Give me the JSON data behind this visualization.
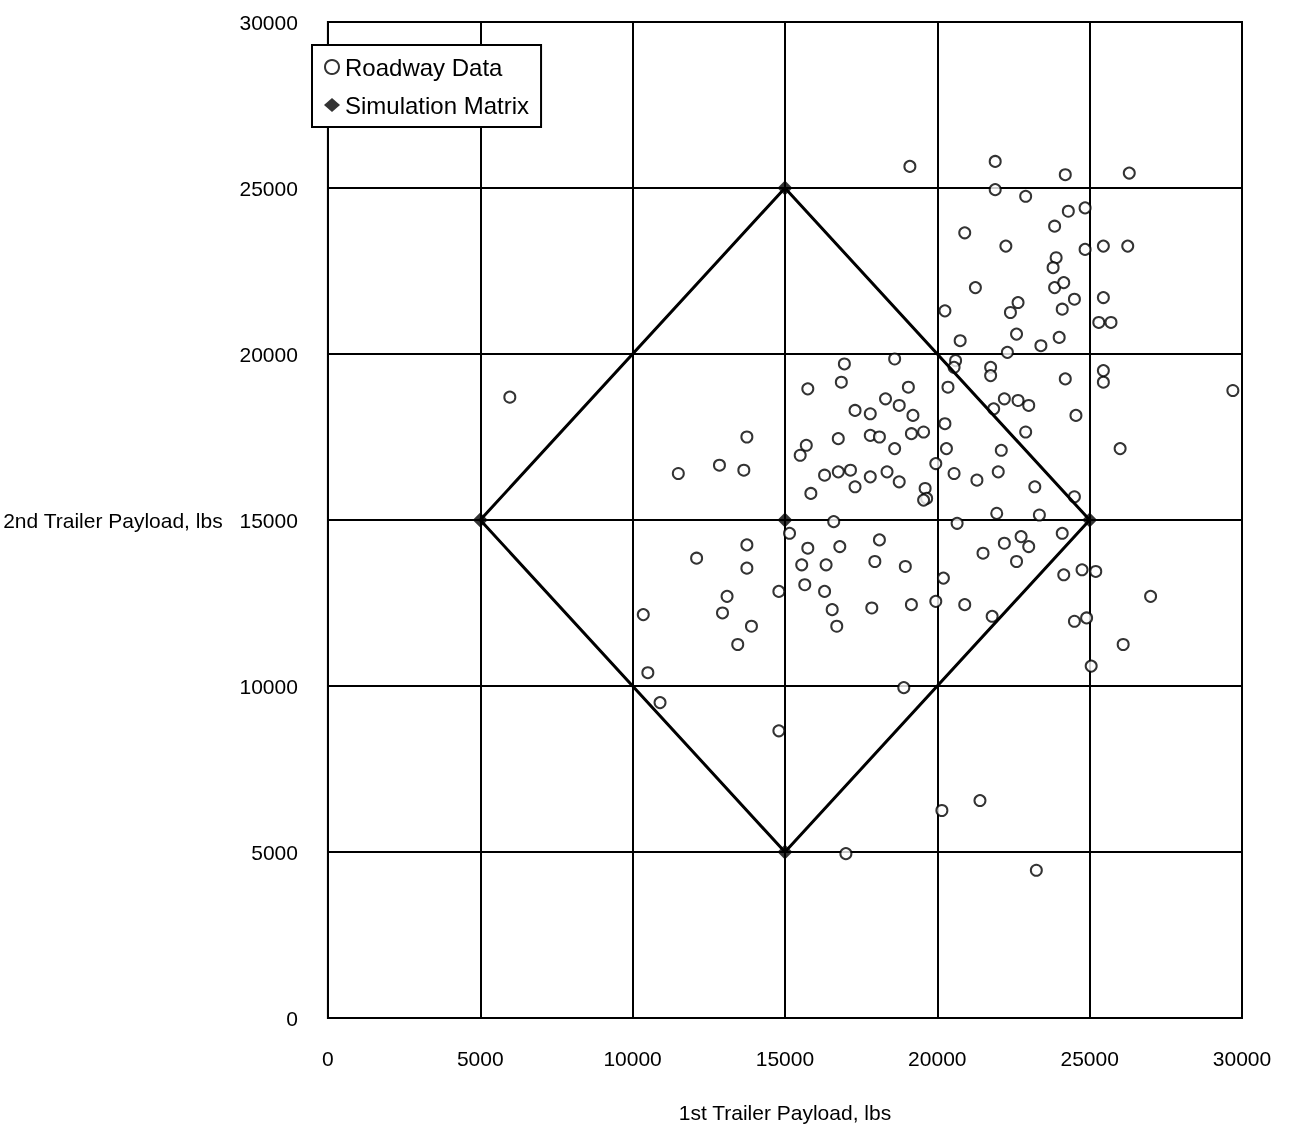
{
  "chart_data": {
    "type": "scatter",
    "xlabel": "1st Trailer Payload, lbs",
    "ylabel": "2nd Trailer Payload, lbs",
    "xlim": [
      0,
      30000
    ],
    "xticks": [
      0,
      5000,
      10000,
      15000,
      20000,
      25000,
      30000
    ],
    "ylim": [
      0,
      30000
    ],
    "yticks": [
      0,
      5000,
      10000,
      15000,
      20000,
      25000,
      30000
    ],
    "grid": true,
    "legend": "top left",
    "series": [
      {
        "name": "Roadway Data",
        "color": "#000000",
        "marker": "circle",
        "x": [
          5970,
          29700,
          19100,
          21900,
          24200,
          26300,
          21900,
          22900,
          24850,
          24300,
          23850,
          25450,
          26250,
          20900,
          22250,
          21250,
          20250,
          22400,
          22650,
          23900,
          23800,
          24850,
          23850,
          24150,
          24500,
          24100,
          25450,
          25300,
          25700,
          20750,
          22600,
          22300,
          23400,
          24000,
          20600,
          20550,
          21750,
          21750,
          24200,
          25450,
          25450,
          20350,
          21850,
          22200,
          22650,
          23000,
          24550,
          20250,
          22900,
          26000,
          22100,
          20300,
          19950,
          20550,
          21300,
          22000,
          19600,
          19650,
          23200,
          24500,
          21950,
          23350,
          20650,
          16950,
          18600,
          15750,
          16850,
          19050,
          18300,
          17300,
          17800,
          18750,
          19200,
          19550,
          19150,
          13750,
          16750,
          17800,
          18100,
          18600,
          15700,
          15500,
          11500,
          12850,
          13650,
          16750,
          17150,
          16300,
          17800,
          18350,
          18750,
          17300,
          15850,
          19550,
          16600,
          15150,
          13750,
          15750,
          16800,
          18100,
          12100,
          13750,
          15550,
          16350,
          17950,
          18950,
          14800,
          15650,
          16300,
          16550,
          16700,
          13100,
          12950,
          13900,
          13450,
          10350,
          17850,
          19150,
          10500,
          10900,
          18900,
          14800,
          17000,
          24100,
          22750,
          22200,
          23000,
          21500,
          22600,
          24750,
          25200,
          24150,
          20200,
          19950,
          20900,
          21800,
          27000,
          24500,
          24900,
          26100,
          25050,
          21400,
          20150,
          23250
        ],
        "values": [
          18700,
          18900,
          25650,
          25800,
          25400,
          25450,
          24950,
          24750,
          24400,
          24300,
          23850,
          23250,
          23250,
          23650,
          23250,
          22000,
          21300,
          21250,
          21550,
          22900,
          22600,
          23150,
          22000,
          22150,
          21650,
          21350,
          21700,
          20950,
          20950,
          20400,
          20600,
          20050,
          20250,
          20500,
          19800,
          19600,
          19600,
          19350,
          19250,
          19500,
          19150,
          19000,
          18350,
          18650,
          18600,
          18450,
          18150,
          17900,
          17650,
          17150,
          17100,
          17150,
          16700,
          16400,
          16200,
          16450,
          15950,
          15650,
          16000,
          15700,
          15200,
          15150,
          14900,
          19700,
          19850,
          18950,
          19150,
          19000,
          18650,
          18300,
          18200,
          18450,
          18150,
          17650,
          17600,
          17500,
          17450,
          17550,
          17500,
          17150,
          17250,
          16950,
          16400,
          16650,
          16500,
          16450,
          16500,
          16350,
          16300,
          16450,
          16150,
          16000,
          15800,
          15600,
          14950,
          14600,
          14250,
          14150,
          14200,
          14400,
          13850,
          13550,
          13650,
          13650,
          13750,
          13600,
          12850,
          13050,
          12850,
          12300,
          11800,
          12700,
          12200,
          11800,
          11250,
          12150,
          12350,
          12450,
          10400,
          9500,
          9950,
          8650,
          4950,
          14600,
          14500,
          14300,
          14200,
          14000,
          13750,
          13500,
          13450,
          13350,
          13250,
          12550,
          12450,
          12100,
          12700,
          11950,
          12050,
          11250,
          10600,
          6550,
          6250,
          4450
        ]
      },
      {
        "name": "Simulation Matrix",
        "color": "#000000",
        "marker": "diamond",
        "x": [
          5000,
          15000,
          15000,
          25000,
          15000
        ],
        "values": [
          15000,
          25000,
          15000,
          15000,
          5000
        ]
      },
      {
        "type": "line",
        "color": "#000000",
        "marker": "none",
        "x": [
          5000,
          15000,
          25000
        ],
        "values": [
          15000,
          25000,
          15000
        ]
      },
      {
        "type": "line",
        "color": "#000000",
        "marker": "none",
        "x": [
          5000,
          15000,
          25000
        ],
        "values": [
          15000,
          5000,
          15000
        ]
      }
    ]
  }
}
